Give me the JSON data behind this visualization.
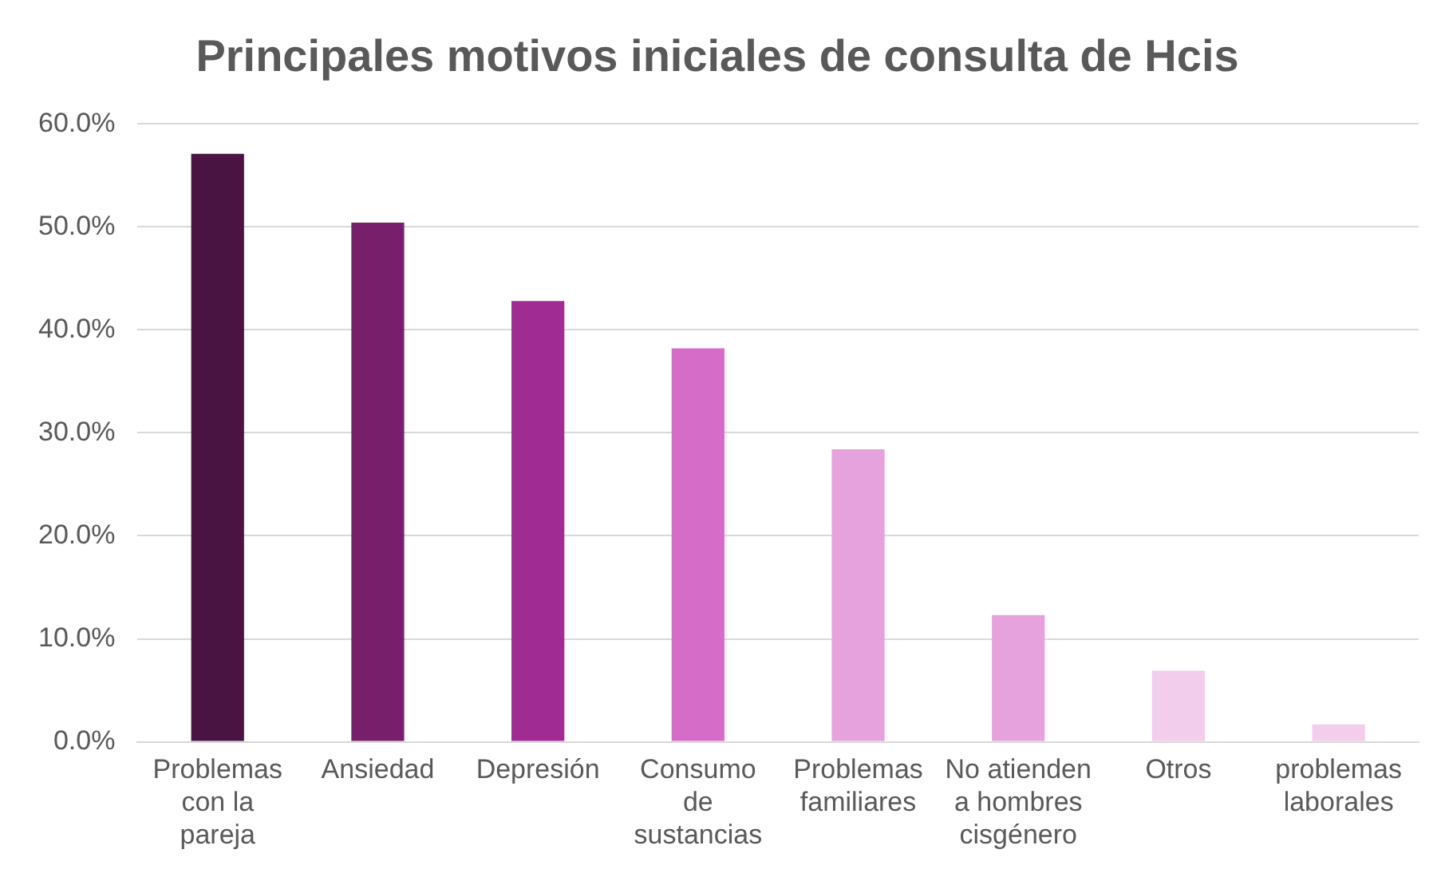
{
  "chart_data": {
    "type": "bar",
    "title": "Principales motivos iniciales de consulta de Hcis",
    "categories": [
      "Problemas con la pareja",
      "Ansiedad",
      "Depresión",
      "Consumo de sustancias",
      "Problemas familiares",
      "No atienden a hombres cisgénero",
      "Otros",
      "problemas laborales"
    ],
    "values": [
      57.1,
      50.4,
      42.8,
      38.2,
      28.4,
      12.3,
      6.9,
      1.7
    ],
    "colors": [
      "#4a1442",
      "#771f6b",
      "#a02c93",
      "#d56cc8",
      "#e6a2dd",
      "#e6a2dd",
      "#f2cdec",
      "#f2cdec"
    ],
    "ylim": [
      0,
      60
    ],
    "yticks": [
      {
        "value": 0,
        "label": "0.0%"
      },
      {
        "value": 10,
        "label": "10.0%"
      },
      {
        "value": 20,
        "label": "20.0%"
      },
      {
        "value": 30,
        "label": "30.0%"
      },
      {
        "value": 40,
        "label": "40.0%"
      },
      {
        "value": 50,
        "label": "50.0%"
      },
      {
        "value": 60,
        "label": "60.0%"
      }
    ],
    "grid": "y",
    "legend": false
  }
}
